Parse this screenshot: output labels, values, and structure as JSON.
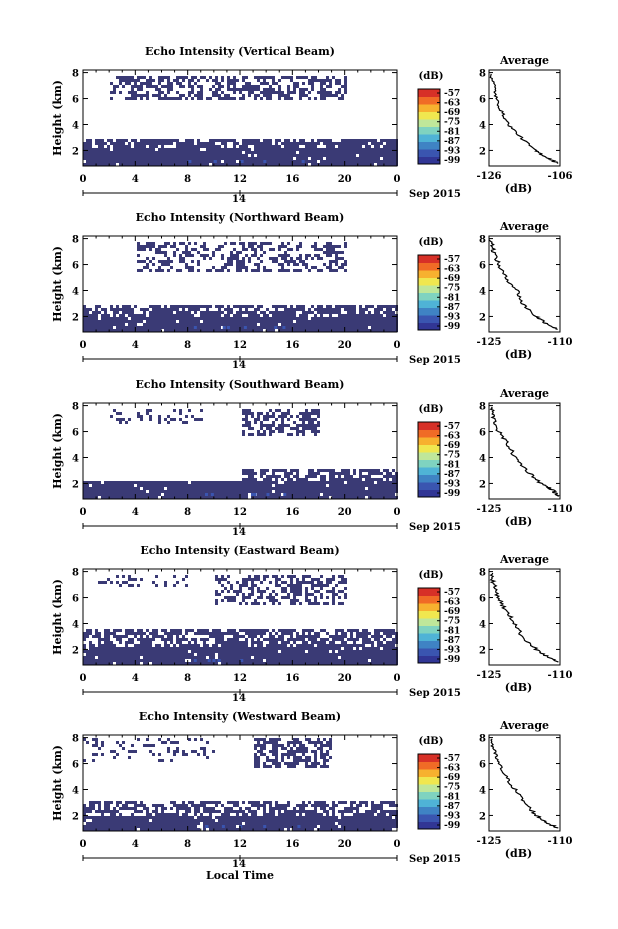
{
  "figure": {
    "xlabel": "Local Time",
    "date_label": "Sep 2015",
    "day_label": "14",
    "colorbar_unit": "(dB)",
    "colorbar_ticks": [
      "-57",
      "-63",
      "-69",
      "-75",
      "-81",
      "-87",
      "-93",
      "-99"
    ],
    "colorscale": [
      "#313695",
      "#3a55b0",
      "#3f83c4",
      "#4fb3d6",
      "#7fd3c0",
      "#bfe79a",
      "#f0e74f",
      "#f7b12f",
      "#f06b26",
      "#d73027"
    ]
  },
  "chart_data": [
    {
      "type": "heatmap",
      "title": "Echo Intensity (Vertical Beam)",
      "ylabel": "Height (km)",
      "x_ticks": [
        "0",
        "4",
        "8",
        "12",
        "16",
        "20",
        "0"
      ],
      "y_ticks": [
        "2",
        "4",
        "6",
        "8"
      ],
      "xlim": [
        0,
        24
      ],
      "ylim": [
        0.8,
        8.2
      ],
      "fill_color": "#3a3a75",
      "regions": [
        {
          "x0": 0,
          "x1": 24,
          "y0": 0.8,
          "y1": 2.2,
          "density": 0.97
        },
        {
          "x0": 0,
          "x1": 24,
          "y0": 2.2,
          "y1": 3.1,
          "density": 0.8
        },
        {
          "x0": 2,
          "x1": 20,
          "y0": 6.0,
          "y1": 7.9,
          "density": 0.55
        }
      ],
      "average": {
        "title": "Average",
        "xlabel": "(dB)",
        "xlim": [
          -126,
          -106
        ],
        "x_ticks": [
          "-126",
          "-106"
        ],
        "y_ticks": [
          "2",
          "4",
          "6",
          "8"
        ],
        "x": [
          -125.5,
          -124.5,
          -124,
          -122.5,
          -120.5,
          -117,
          -113,
          -110,
          -106.5
        ],
        "y": [
          7.9,
          7,
          6,
          5,
          4,
          3,
          2,
          1.5,
          1
        ]
      }
    },
    {
      "type": "heatmap",
      "title": "Echo Intensity (Northward Beam)",
      "ylabel": "Height (km)",
      "x_ticks": [
        "0",
        "4",
        "8",
        "12",
        "16",
        "20",
        "0"
      ],
      "y_ticks": [
        "2",
        "4",
        "6",
        "8"
      ],
      "xlim": [
        0,
        24
      ],
      "ylim": [
        0.8,
        8.2
      ],
      "fill_color": "#3a3a75",
      "regions": [
        {
          "x0": 0,
          "x1": 24,
          "y0": 0.8,
          "y1": 2.0,
          "density": 0.96
        },
        {
          "x0": 0,
          "x1": 24,
          "y0": 2.0,
          "y1": 3.0,
          "density": 0.72
        },
        {
          "x0": 4,
          "x1": 20,
          "y0": 5.5,
          "y1": 7.8,
          "density": 0.42
        }
      ],
      "average": {
        "title": "Average",
        "xlabel": "(dB)",
        "xlim": [
          -125,
          -110
        ],
        "x_ticks": [
          "-125",
          "-110"
        ],
        "y_ticks": [
          "2",
          "4",
          "6",
          "8"
        ],
        "x": [
          -124.5,
          -124,
          -123,
          -121.5,
          -119,
          -118,
          -115,
          -113,
          -110.5
        ],
        "y": [
          7.9,
          7,
          6,
          5,
          4,
          3,
          2,
          1.5,
          1
        ]
      }
    },
    {
      "type": "heatmap",
      "title": "Echo Intensity (Southward Beam)",
      "ylabel": "Height (km)",
      "x_ticks": [
        "0",
        "4",
        "8",
        "12",
        "16",
        "20",
        "0"
      ],
      "y_ticks": [
        "2",
        "4",
        "6",
        "8"
      ],
      "xlim": [
        0,
        24
      ],
      "ylim": [
        0.8,
        8.2
      ],
      "fill_color": "#3a3a75",
      "regions": [
        {
          "x0": 0,
          "x1": 24,
          "y0": 0.8,
          "y1": 2.4,
          "density": 0.96
        },
        {
          "x0": 12,
          "x1": 24,
          "y0": 2.4,
          "y1": 3.3,
          "density": 0.7
        },
        {
          "x0": 12,
          "x1": 18,
          "y0": 5.8,
          "y1": 7.9,
          "density": 0.55
        },
        {
          "x0": 2,
          "x1": 9,
          "y0": 6.8,
          "y1": 7.8,
          "density": 0.28
        }
      ],
      "average": {
        "title": "Average",
        "xlabel": "(dB)",
        "xlim": [
          -125,
          -110
        ],
        "x_ticks": [
          "-125",
          "-110"
        ],
        "y_ticks": [
          "2",
          "4",
          "6",
          "8"
        ],
        "x": [
          -124.5,
          -124,
          -123,
          -121,
          -119.5,
          -117,
          -114,
          -111.5,
          -110.5
        ],
        "y": [
          7.9,
          7,
          6,
          5,
          4,
          3,
          2,
          1.5,
          1
        ]
      }
    },
    {
      "type": "heatmap",
      "title": "Echo Intensity (Eastward Beam)",
      "ylabel": "Height (km)",
      "x_ticks": [
        "0",
        "4",
        "8",
        "12",
        "16",
        "20",
        "0"
      ],
      "y_ticks": [
        "2",
        "4",
        "6",
        "8"
      ],
      "xlim": [
        0,
        24
      ],
      "ylim": [
        0.8,
        8.2
      ],
      "fill_color": "#3a3a75",
      "regions": [
        {
          "x0": 0,
          "x1": 24,
          "y0": 0.8,
          "y1": 2.4,
          "density": 0.95
        },
        {
          "x0": 0,
          "x1": 24,
          "y0": 2.4,
          "y1": 3.6,
          "density": 0.7
        },
        {
          "x0": 10,
          "x1": 20,
          "y0": 5.5,
          "y1": 7.9,
          "density": 0.5
        },
        {
          "x0": 1,
          "x1": 8,
          "y0": 7.0,
          "y1": 7.9,
          "density": 0.2
        }
      ],
      "average": {
        "title": "Average",
        "xlabel": "(dB)",
        "xlim": [
          -125,
          -110
        ],
        "x_ticks": [
          "-125",
          "-110"
        ],
        "y_ticks": [
          "2",
          "4",
          "6",
          "8"
        ],
        "x": [
          -124.5,
          -124,
          -123,
          -121.5,
          -119.5,
          -118,
          -115,
          -113,
          -110.5
        ],
        "y": [
          7.9,
          7,
          6,
          5,
          4,
          3,
          2,
          1.5,
          1
        ]
      }
    },
    {
      "type": "heatmap",
      "title": "Echo Intensity (Westward Beam)",
      "ylabel": "Height (km)",
      "x_ticks": [
        "0",
        "4",
        "8",
        "12",
        "16",
        "20",
        "0"
      ],
      "y_ticks": [
        "2",
        "4",
        "6",
        "8"
      ],
      "xlim": [
        0,
        24
      ],
      "ylim": [
        0.8,
        8.2
      ],
      "fill_color": "#3a3a75",
      "regions": [
        {
          "x0": 0,
          "x1": 24,
          "y0": 0.8,
          "y1": 2.1,
          "density": 0.95
        },
        {
          "x0": 0,
          "x1": 24,
          "y0": 2.1,
          "y1": 3.2,
          "density": 0.62
        },
        {
          "x0": 13,
          "x1": 19,
          "y0": 5.8,
          "y1": 8.0,
          "density": 0.6
        },
        {
          "x0": 0,
          "x1": 10,
          "y0": 6.2,
          "y1": 8.0,
          "density": 0.22
        }
      ],
      "average": {
        "title": "Average",
        "xlabel": "(dB)",
        "xlim": [
          -125,
          -110
        ],
        "x_ticks": [
          "-125",
          "-110"
        ],
        "y_ticks": [
          "2",
          "4",
          "6",
          "8"
        ],
        "x": [
          -124.5,
          -124,
          -123,
          -121.5,
          -119.5,
          -117.5,
          -115,
          -113,
          -110.5
        ],
        "y": [
          7.9,
          7,
          6,
          5,
          4,
          3,
          2,
          1.5,
          1
        ]
      }
    }
  ]
}
